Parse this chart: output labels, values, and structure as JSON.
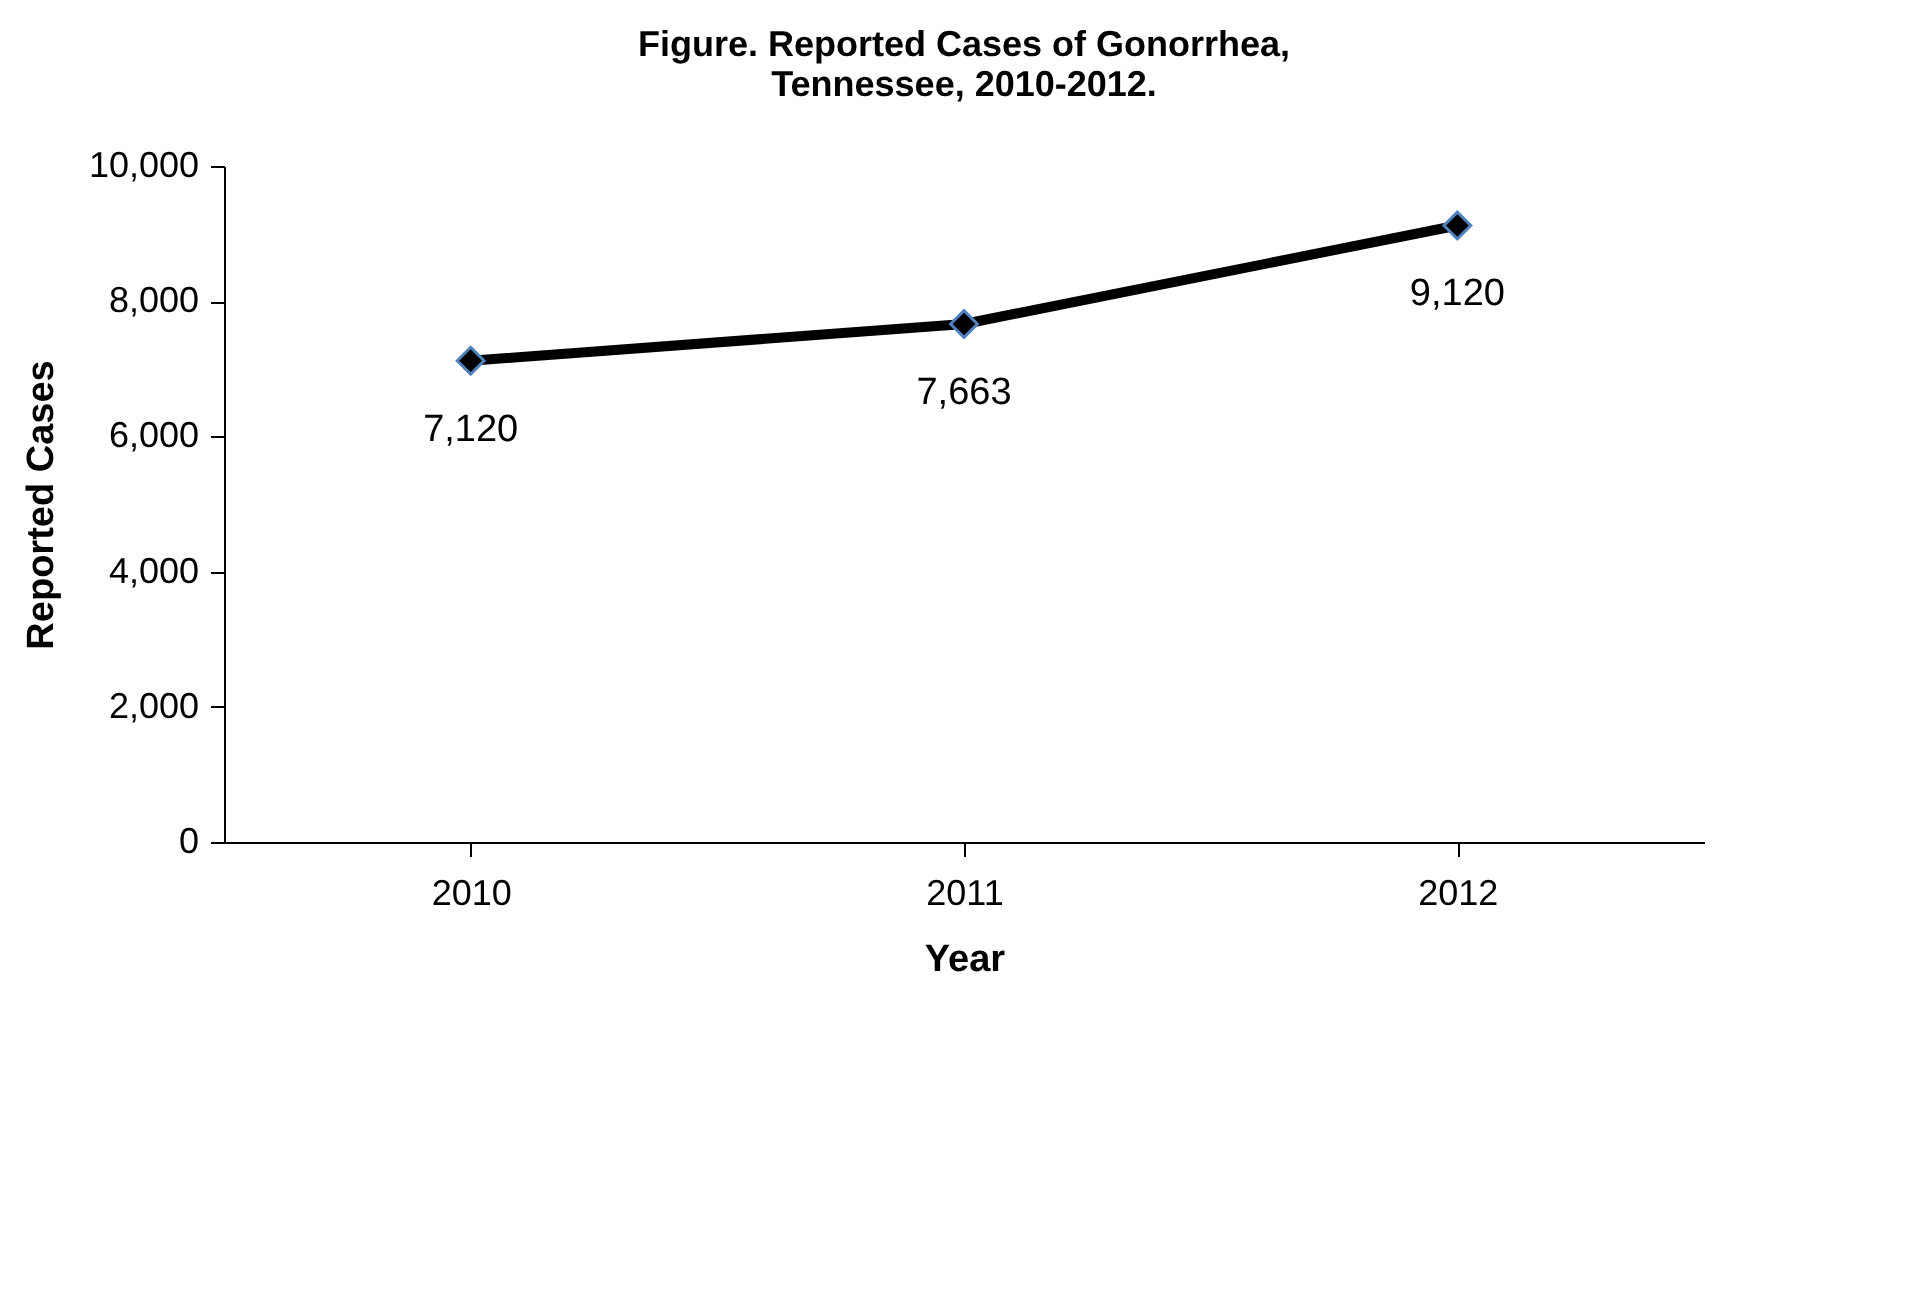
{
  "chart_data": {
    "type": "line",
    "title": [
      "Figure. Reported Cases of Gonorrhea,",
      "Tennessee, 2010-2012."
    ],
    "xlabel": "Year",
    "ylabel": "Reported Cases",
    "categories": [
      "2010",
      "2011",
      "2012"
    ],
    "series": [
      {
        "color": "#000000",
        "values": [
          7120,
          7663,
          9120
        ],
        "value_labels": [
          "7,120",
          "7,663",
          "9,120"
        ]
      }
    ],
    "ylim": [
      0,
      10000
    ],
    "yticks": [
      {
        "value": 0,
        "label": "0"
      },
      {
        "value": 2000,
        "label": "2,000"
      },
      {
        "value": 4000,
        "label": "4,000"
      },
      {
        "value": 6000,
        "label": "6,000"
      },
      {
        "value": 8000,
        "label": "8,000"
      },
      {
        "value": 10000,
        "label": "10,000"
      }
    ],
    "grid": false,
    "marker": "diamond",
    "line_style": "solid"
  }
}
